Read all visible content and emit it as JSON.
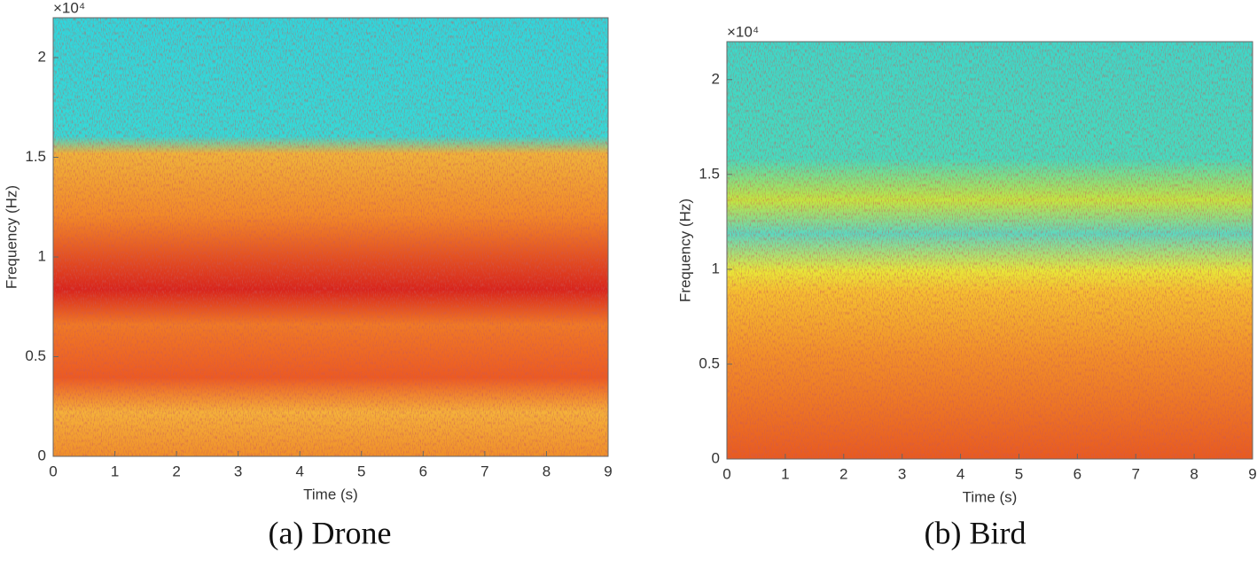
{
  "chart_data": [
    {
      "type": "spectrogram",
      "caption": "(a) Drone",
      "xlabel": "Time (s)",
      "ylabel": "Frequency (Hz)",
      "y_exponent_label": "×10⁴",
      "xlim": [
        0,
        9
      ],
      "xticks": [
        0,
        1,
        2,
        3,
        4,
        5,
        6,
        7,
        8,
        9
      ],
      "ylim": [
        0,
        2.2
      ],
      "yticks": [
        0,
        0.5,
        1,
        1.5,
        2
      ]
    },
    {
      "type": "spectrogram",
      "caption": "(b) Bird",
      "xlabel": "Time (s)",
      "ylabel": "Frequency (Hz)",
      "y_exponent_label": "×10⁴",
      "xlim": [
        0,
        9
      ],
      "xticks": [
        0,
        1,
        2,
        3,
        4,
        5,
        6,
        7,
        8,
        9
      ],
      "ylim": [
        0,
        2.2
      ],
      "yticks": [
        0,
        0.5,
        1,
        1.5,
        2
      ]
    }
  ]
}
